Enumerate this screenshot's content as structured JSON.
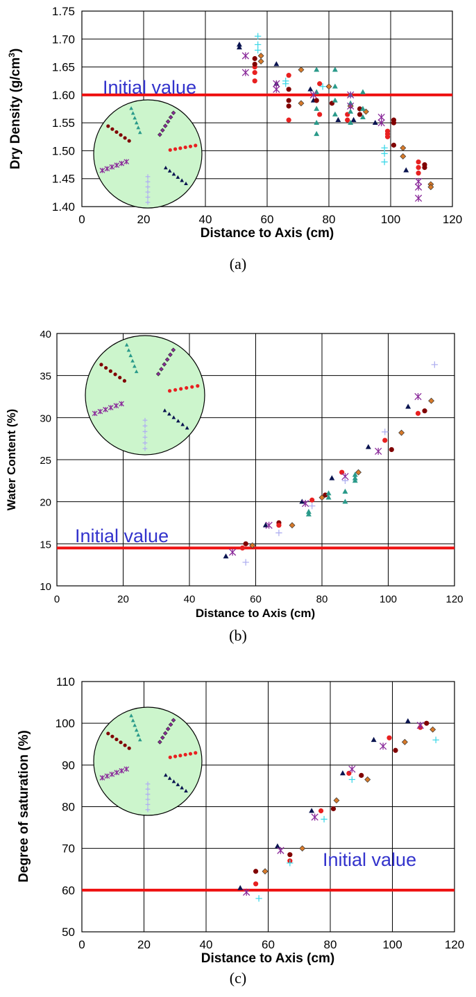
{
  "chart_data": [
    {
      "type": "scatter",
      "caption": "(a)",
      "xlabel": "Distance to Axis (cm)",
      "ylabel_pre": "Dry Density (g/cm",
      "ylabel_sup": "3",
      "ylabel_post": ")",
      "xlim": [
        0,
        120
      ],
      "ylim": [
        1.4,
        1.75
      ],
      "xticks": [
        0,
        20,
        40,
        60,
        80,
        100,
        120
      ],
      "xtick_labels": [
        "0",
        "20",
        "40",
        "60",
        "80",
        "100",
        "120"
      ],
      "yticks": [
        1.4,
        1.45,
        1.5,
        1.55,
        1.6,
        1.65,
        1.7,
        1.75
      ],
      "ytick_labels": [
        "1.40",
        "1.45",
        "1.50",
        "1.55",
        "1.60",
        "1.65",
        "1.70",
        "1.75"
      ],
      "grid": true,
      "annotation": "Initial value",
      "initial_value": 1.6,
      "series": [
        {
          "marker": "triangle",
          "color": "#0a1450",
          "points": [
            [
              51,
              1.69
            ],
            [
              51,
              1.685
            ],
            [
              63,
              1.655
            ],
            [
              63,
              1.62
            ],
            [
              74,
              1.61
            ],
            [
              75,
              1.59
            ],
            [
              83,
              1.555
            ],
            [
              88,
              1.555
            ],
            [
              95,
              1.55
            ],
            [
              105,
              1.465
            ]
          ]
        },
        {
          "marker": "diamond",
          "color": "#d87a2a",
          "points": [
            [
              58,
              1.67
            ],
            [
              58,
              1.66
            ],
            [
              71,
              1.645
            ],
            [
              71,
              1.585
            ],
            [
              80,
              1.615
            ],
            [
              87,
              1.58
            ],
            [
              92,
              1.57
            ],
            [
              104,
              1.505
            ],
            [
              104,
              1.49
            ],
            [
              113,
              1.44
            ],
            [
              113,
              1.435
            ]
          ]
        },
        {
          "marker": "circle",
          "color": "#e82020",
          "points": [
            [
              56,
              1.65
            ],
            [
              56,
              1.64
            ],
            [
              56,
              1.625
            ],
            [
              67,
              1.635
            ],
            [
              67,
              1.555
            ],
            [
              77,
              1.62
            ],
            [
              77,
              1.565
            ],
            [
              86,
              1.565
            ],
            [
              86,
              1.555
            ],
            [
              99,
              1.535
            ],
            [
              99,
              1.53
            ],
            [
              99,
              1.525
            ],
            [
              109,
              1.48
            ],
            [
              109,
              1.47
            ],
            [
              109,
              1.46
            ]
          ]
        },
        {
          "marker": "circle",
          "color": "#800000",
          "points": [
            [
              56,
              1.665
            ],
            [
              56,
              1.655
            ],
            [
              67,
              1.61
            ],
            [
              67,
              1.59
            ],
            [
              67,
              1.58
            ],
            [
              76,
              1.59
            ],
            [
              81,
              1.585
            ],
            [
              90,
              1.575
            ],
            [
              90,
              1.565
            ],
            [
              101,
              1.555
            ],
            [
              101,
              1.55
            ],
            [
              101,
              1.51
            ],
            [
              111,
              1.475
            ],
            [
              111,
              1.47
            ]
          ]
        },
        {
          "marker": "triangle",
          "color": "#2a9a8a",
          "points": [
            [
              76,
              1.645
            ],
            [
              76,
              1.605
            ],
            [
              76,
              1.575
            ],
            [
              76,
              1.55
            ],
            [
              76,
              1.53
            ],
            [
              82,
              1.645
            ],
            [
              82,
              1.615
            ],
            [
              82,
              1.59
            ],
            [
              82,
              1.565
            ],
            [
              87,
              1.6
            ],
            [
              87,
              1.585
            ],
            [
              87,
              1.57
            ],
            [
              87,
              1.55
            ],
            [
              91,
              1.605
            ],
            [
              91,
              1.575
            ],
            [
              91,
              1.56
            ]
          ]
        },
        {
          "marker": "star",
          "color": "#8a2a9a",
          "points": [
            [
              53,
              1.67
            ],
            [
              53,
              1.64
            ],
            [
              63,
              1.62
            ],
            [
              63,
              1.61
            ],
            [
              75,
              1.6
            ],
            [
              87,
              1.6
            ],
            [
              87,
              1.58
            ],
            [
              97,
              1.56
            ],
            [
              97,
              1.55
            ],
            [
              109,
              1.445
            ],
            [
              109,
              1.435
            ],
            [
              109,
              1.415
            ]
          ]
        },
        {
          "marker": "plus",
          "color": "#40d8e8",
          "points": [
            [
              57,
              1.705
            ],
            [
              57,
              1.69
            ],
            [
              57,
              1.68
            ],
            [
              66,
              1.625
            ],
            [
              66,
              1.62
            ],
            [
              78,
              1.615
            ],
            [
              98,
              1.505
            ],
            [
              98,
              1.495
            ],
            [
              98,
              1.48
            ]
          ]
        }
      ]
    },
    {
      "type": "scatter",
      "caption": "(b)",
      "xlabel": "Distance to Axis (cm)",
      "ylabel": "Water Content (%)",
      "xlim": [
        0,
        120
      ],
      "ylim": [
        10,
        40
      ],
      "xticks": [
        0,
        20,
        40,
        60,
        80,
        100,
        120
      ],
      "xtick_labels": [
        "0",
        "20",
        "40",
        "60",
        "80",
        "100",
        "120"
      ],
      "yticks": [
        10,
        15,
        20,
        25,
        30,
        35,
        40
      ],
      "ytick_labels": [
        "10",
        "15",
        "20",
        "25",
        "30",
        "35",
        "40"
      ],
      "grid": true,
      "annotation": "Initial value",
      "initial_value": 14.5,
      "series": [
        {
          "marker": "triangle",
          "color": "#0a1450",
          "points": [
            [
              51,
              13.5
            ],
            [
              63,
              17.2
            ],
            [
              74,
              20
            ],
            [
              83,
              22.8
            ],
            [
              94,
              26.5
            ],
            [
              106,
              31.3
            ]
          ]
        },
        {
          "marker": "circle",
          "color": "#800000",
          "points": [
            [
              57,
              15
            ],
            [
              67,
              17.5
            ],
            [
              81,
              20.8
            ],
            [
              101,
              26.2
            ],
            [
              111,
              30.8
            ]
          ]
        },
        {
          "marker": "diamond",
          "color": "#d87a2a",
          "points": [
            [
              59,
              14.8
            ],
            [
              71,
              17.2
            ],
            [
              80,
              20.5
            ],
            [
              91,
              23.5
            ],
            [
              104,
              28.2
            ],
            [
              113,
              32
            ]
          ]
        },
        {
          "marker": "circle",
          "color": "#e82020",
          "points": [
            [
              56,
              14.5
            ],
            [
              67,
              17.2
            ],
            [
              77,
              20.2
            ],
            [
              86,
              23.5
            ],
            [
              99,
              27.3
            ],
            [
              109,
              30.5
            ]
          ]
        },
        {
          "marker": "triangle",
          "color": "#2a9a8a",
          "points": [
            [
              76,
              18.8
            ],
            [
              76,
              18.5
            ],
            [
              82,
              20.5
            ],
            [
              82,
              21
            ],
            [
              87,
              21.2
            ],
            [
              87,
              20
            ],
            [
              90,
              22.8
            ],
            [
              90,
              23.2
            ],
            [
              90,
              22.5
            ]
          ]
        },
        {
          "marker": "star",
          "color": "#8a2a9a",
          "points": [
            [
              53,
              14
            ],
            [
              64,
              17.2
            ],
            [
              75,
              19.8
            ],
            [
              87,
              23
            ],
            [
              97,
              26
            ],
            [
              109,
              32.5
            ]
          ]
        },
        {
          "marker": "plus",
          "color": "#b0b0f0",
          "points": [
            [
              57,
              12.8
            ],
            [
              67,
              16.3
            ],
            [
              77,
              19.5
            ],
            [
              87,
              22.5
            ],
            [
              99,
              28.3
            ],
            [
              114,
              36.3
            ]
          ]
        }
      ]
    },
    {
      "type": "scatter",
      "caption": "(c)",
      "xlabel": "Distance to Axis (cm)",
      "ylabel": "Degree of saturation (%)",
      "xlim": [
        0,
        120
      ],
      "ylim": [
        50,
        110
      ],
      "xticks": [
        0,
        20,
        40,
        60,
        80,
        100,
        120
      ],
      "xtick_labels": [
        "0",
        "20",
        "40",
        "60",
        "80",
        "100",
        "120"
      ],
      "yticks": [
        50,
        60,
        70,
        80,
        90,
        100,
        110
      ],
      "ytick_labels": [
        "50",
        "60",
        "70",
        "80",
        "90",
        "100",
        "110"
      ],
      "grid": true,
      "annotation": "Initial value",
      "initial_value": 60,
      "series": [
        {
          "marker": "triangle",
          "color": "#0a1450",
          "points": [
            [
              51,
              60.5
            ],
            [
              63,
              70.5
            ],
            [
              74,
              79
            ],
            [
              84,
              88
            ],
            [
              94,
              96
            ],
            [
              105,
              100.5
            ]
          ]
        },
        {
          "marker": "circle",
          "color": "#800000",
          "points": [
            [
              56,
              64.5
            ],
            [
              67,
              68.5
            ],
            [
              81,
              79.5
            ],
            [
              90,
              87.5
            ],
            [
              101,
              93.5
            ],
            [
              111,
              100
            ]
          ]
        },
        {
          "marker": "diamond",
          "color": "#d87a2a",
          "points": [
            [
              59,
              64.5
            ],
            [
              71,
              70
            ],
            [
              82,
              81.5
            ],
            [
              92,
              86.5
            ],
            [
              104,
              95.5
            ],
            [
              113,
              98.5
            ]
          ]
        },
        {
          "marker": "circle",
          "color": "#e82020",
          "points": [
            [
              56,
              61.5
            ],
            [
              67,
              67
            ],
            [
              77,
              79
            ],
            [
              86,
              88
            ],
            [
              99,
              96.5
            ],
            [
              109,
              99
            ]
          ]
        },
        {
          "marker": "star",
          "color": "#8a2a9a",
          "points": [
            [
              53,
              59.5
            ],
            [
              64,
              69.5
            ],
            [
              75,
              77.5
            ],
            [
              87,
              89
            ],
            [
              97,
              94.5
            ],
            [
              109,
              99.5
            ]
          ]
        },
        {
          "marker": "plus",
          "color": "#40d8e8",
          "points": [
            [
              57,
              58
            ],
            [
              67,
              66.5
            ],
            [
              78,
              77
            ],
            [
              87,
              86.5
            ],
            [
              114,
              96
            ]
          ]
        }
      ]
    }
  ],
  "colors": {
    "initial_line": "#ee1111",
    "annotation_text": "#3333cc",
    "inset_fill": "#ccf5cc",
    "grid": "#000000"
  }
}
